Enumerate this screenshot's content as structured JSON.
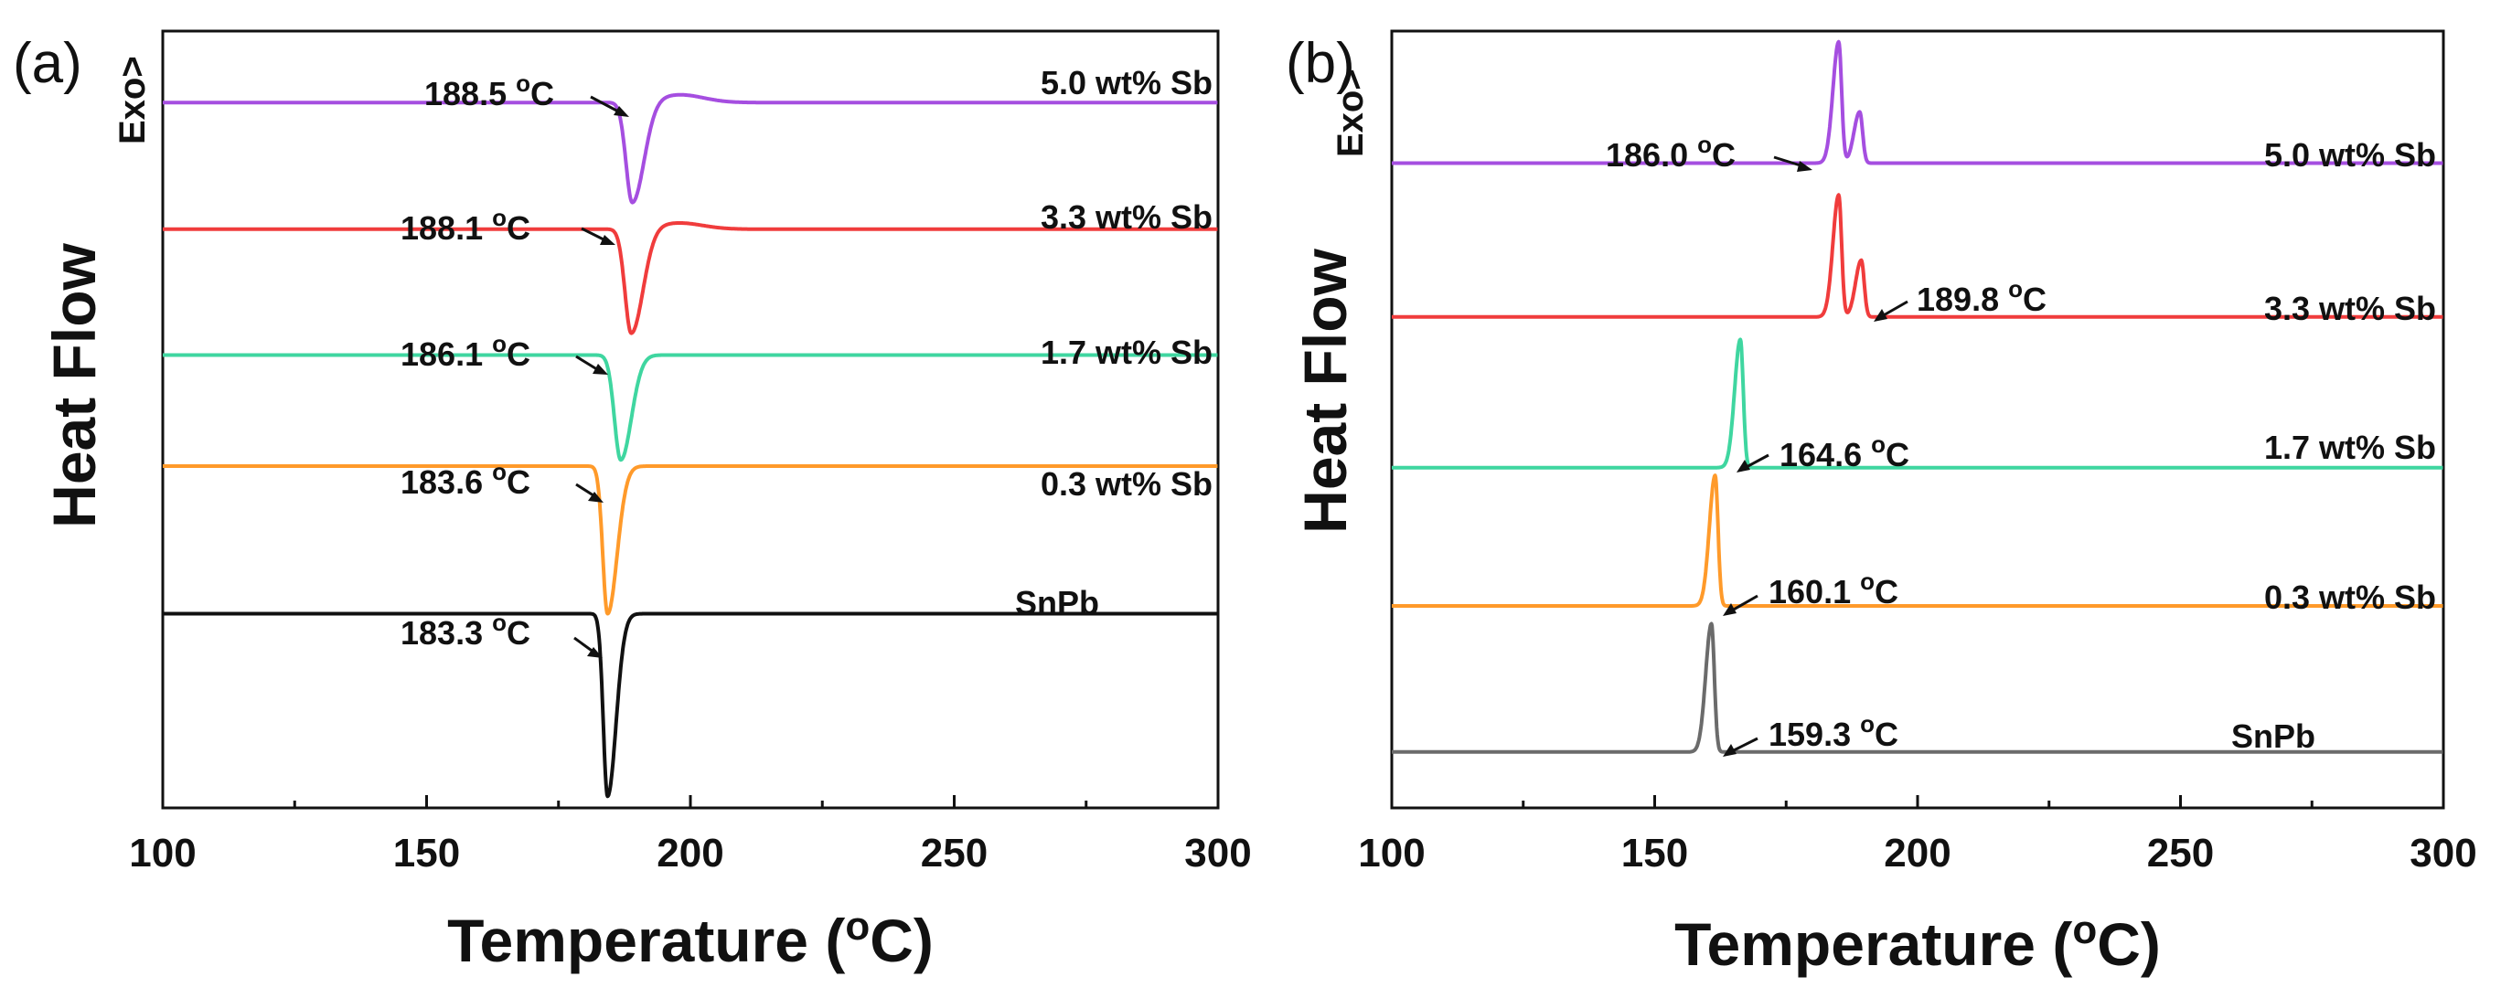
{
  "colors": {
    "purple": "#a54ee0",
    "red": "#f03c3c",
    "green": "#3fd6a0",
    "orange": "#ff9a2a",
    "black": "#111111",
    "gray": "#6b6b6b",
    "axis": "#111111"
  },
  "chart_data": [
    {
      "id": "a",
      "panel_label": "(a)",
      "type": "line",
      "title": "",
      "xlabel": "Temperature (oC)",
      "xlabel_main": "Temperature (",
      "xlabel_sup": "o",
      "xlabel_tail": "C)",
      "ylabel": "Heat Flow",
      "exo_label": "Exo>",
      "xlim": [
        100,
        300
      ],
      "xticks": [
        100,
        150,
        200,
        250,
        300
      ],
      "grid": false,
      "series": [
        {
          "name": "5.0 wt% Sb",
          "color": "purple",
          "baseline": 0.908,
          "peak_temp": 188.5,
          "peak_label": "188.5 oC",
          "label_main": "188.5 ",
          "label_sup": "o",
          "label_tail": "C",
          "peak_x": 189.0,
          "depth": 0.13,
          "width_left": 1.2,
          "width_right": 2.2,
          "overshoot": 0.01
        },
        {
          "name": "3.3 wt% Sb",
          "color": "red",
          "baseline": 0.745,
          "peak_temp": 188.1,
          "peak_label": "188.1 oC",
          "label_main": "188.1 ",
          "label_sup": "o",
          "label_tail": "C",
          "peak_x": 188.8,
          "depth": 0.135,
          "width_left": 1.2,
          "width_right": 2.2,
          "overshoot": 0.008
        },
        {
          "name": "1.7 wt% Sb",
          "color": "green",
          "baseline": 0.583,
          "peak_temp": 186.1,
          "peak_label": "186.1 oC",
          "label_main": "186.1 ",
          "label_sup": "o",
          "label_tail": "C",
          "peak_x": 186.8,
          "depth": 0.135,
          "width_left": 1.2,
          "width_right": 2.0,
          "overshoot": 0.0
        },
        {
          "name": "0.3 wt% Sb",
          "color": "orange",
          "baseline": 0.44,
          "peak_temp": 183.6,
          "peak_label": "183.6 oC",
          "label_main": "183.6 ",
          "label_sup": "o",
          "label_tail": "C",
          "peak_x": 184.3,
          "depth": 0.19,
          "width_left": 0.9,
          "width_right": 1.8,
          "overshoot": 0.0
        },
        {
          "name": "SnPb",
          "color": "black",
          "baseline": 0.25,
          "peak_temp": 183.3,
          "peak_label": "183.3 oC",
          "label_main": "183.3 ",
          "label_sup": "o",
          "label_tail": "C",
          "peak_x": 184.3,
          "depth": 0.235,
          "width_left": 0.8,
          "width_right": 1.6,
          "overshoot": 0.0
        }
      ]
    },
    {
      "id": "b",
      "panel_label": "(b)",
      "type": "line",
      "title": "",
      "xlabel": "Temperature (oC)",
      "xlabel_main": "Temperature (",
      "xlabel_sup": "o",
      "xlabel_tail": "C)",
      "ylabel": "Heat Flow",
      "exo_label": "Exo>",
      "xlim": [
        100,
        300
      ],
      "xticks": [
        100,
        150,
        200,
        250,
        300
      ],
      "grid": false,
      "series": [
        {
          "name": "5.0 wt% Sb",
          "color": "purple",
          "baseline": 0.83,
          "peak_temp": 186.0,
          "peak_label": "186.0 oC",
          "label_main": "186.0 ",
          "label_sup": "o",
          "label_tail": "C",
          "peaks": [
            {
              "x": 185.0,
              "h": 0.156
            },
            {
              "x": 189.0,
              "h": 0.066
            }
          ]
        },
        {
          "name": "3.3 wt% Sb",
          "color": "red",
          "baseline": 0.632,
          "peak_temp": 189.8,
          "peak_label": "189.8 oC",
          "label_main": "189.8 ",
          "label_sup": "o",
          "label_tail": "C",
          "peaks": [
            {
              "x": 185.0,
              "h": 0.157
            },
            {
              "x": 189.3,
              "h": 0.073
            }
          ]
        },
        {
          "name": "1.7 wt% Sb",
          "color": "green",
          "baseline": 0.438,
          "peak_temp": 164.6,
          "peak_label": "164.6 oC",
          "label_main": "164.6 ",
          "label_sup": "o",
          "label_tail": "C",
          "peaks": [
            {
              "x": 166.3,
              "h": 0.165
            }
          ]
        },
        {
          "name": "0.3 wt% Sb",
          "color": "orange",
          "baseline": 0.26,
          "peak_temp": 160.1,
          "peak_label": "160.1 oC",
          "label_main": "160.1 ",
          "label_sup": "o",
          "label_tail": "C",
          "peaks": [
            {
              "x": 161.5,
              "h": 0.168
            }
          ]
        },
        {
          "name": "SnPb",
          "color": "gray",
          "baseline": 0.072,
          "peak_temp": 159.3,
          "peak_label": "159.3 oC",
          "label_main": "159.3 ",
          "label_sup": "o",
          "label_tail": "C",
          "peaks": [
            {
              "x": 160.8,
              "h": 0.165
            }
          ]
        }
      ]
    }
  ]
}
